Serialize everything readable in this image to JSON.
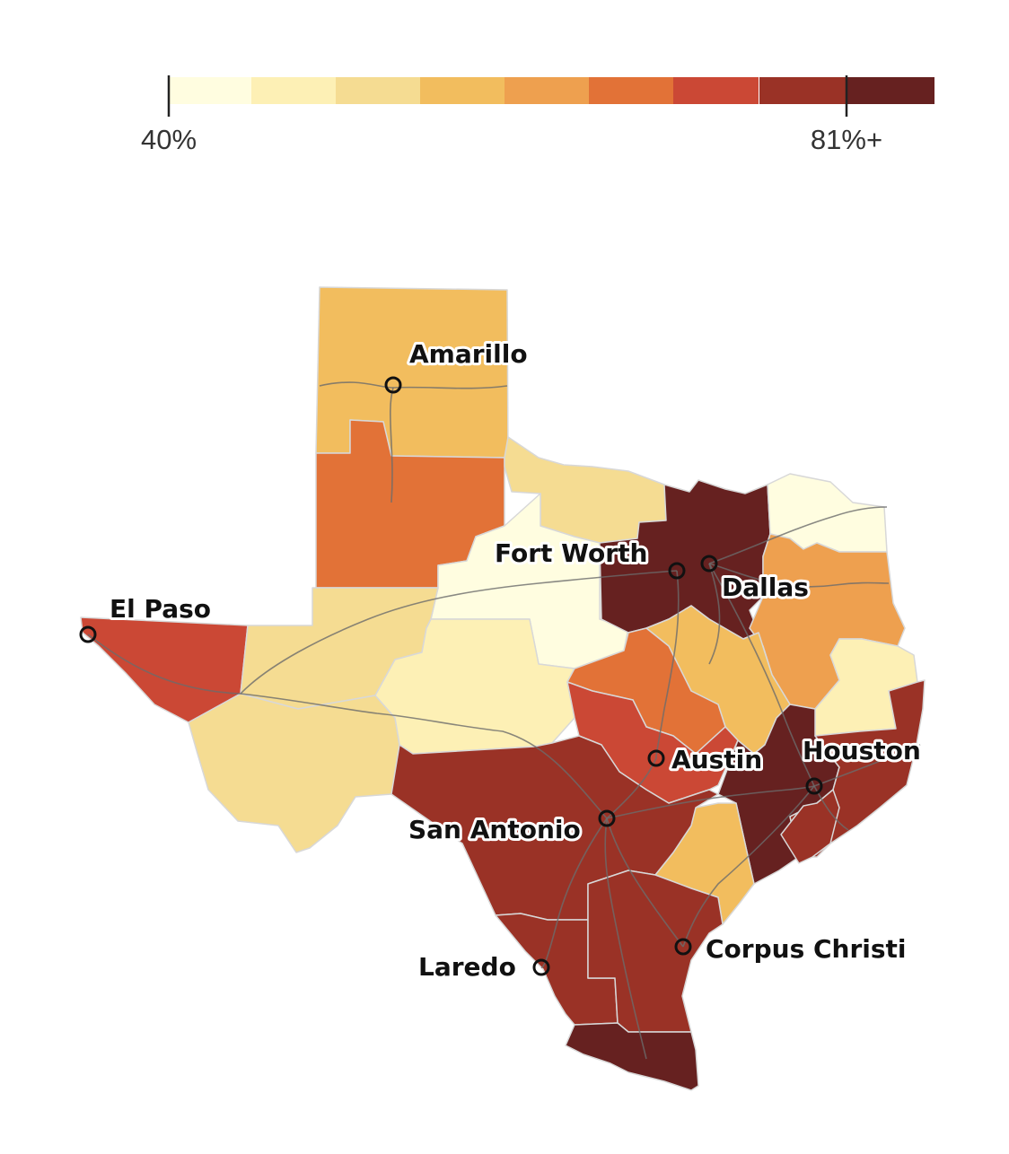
{
  "legend": {
    "min_label": "40%",
    "max_label": "81%+",
    "colors": [
      "#fffde0",
      "#fdf0b5",
      "#f5dc92",
      "#f2bd5e",
      "#eea04f",
      "#e27237",
      "#cb4835",
      "#9a3226",
      "#662120"
    ]
  },
  "palette": {
    "c1": "#fffde0",
    "c2": "#fdf0b5",
    "c3": "#f5dc92",
    "c4": "#f2bd5e",
    "c5": "#eea04f",
    "c6": "#e27237",
    "c7": "#cb4835",
    "c8": "#9a3226",
    "c9": "#662120"
  },
  "cities": [
    {
      "id": "amarillo",
      "name": "Amarillo"
    },
    {
      "id": "fort-worth",
      "name": "Fort Worth"
    },
    {
      "id": "dallas",
      "name": "Dallas"
    },
    {
      "id": "el-paso",
      "name": "El Paso"
    },
    {
      "id": "austin",
      "name": "Austin"
    },
    {
      "id": "houston",
      "name": "Houston"
    },
    {
      "id": "san-antonio",
      "name": "San Antonio"
    },
    {
      "id": "laredo",
      "name": "Laredo"
    },
    {
      "id": "corpus-christi",
      "name": "Corpus Christi"
    }
  ]
}
